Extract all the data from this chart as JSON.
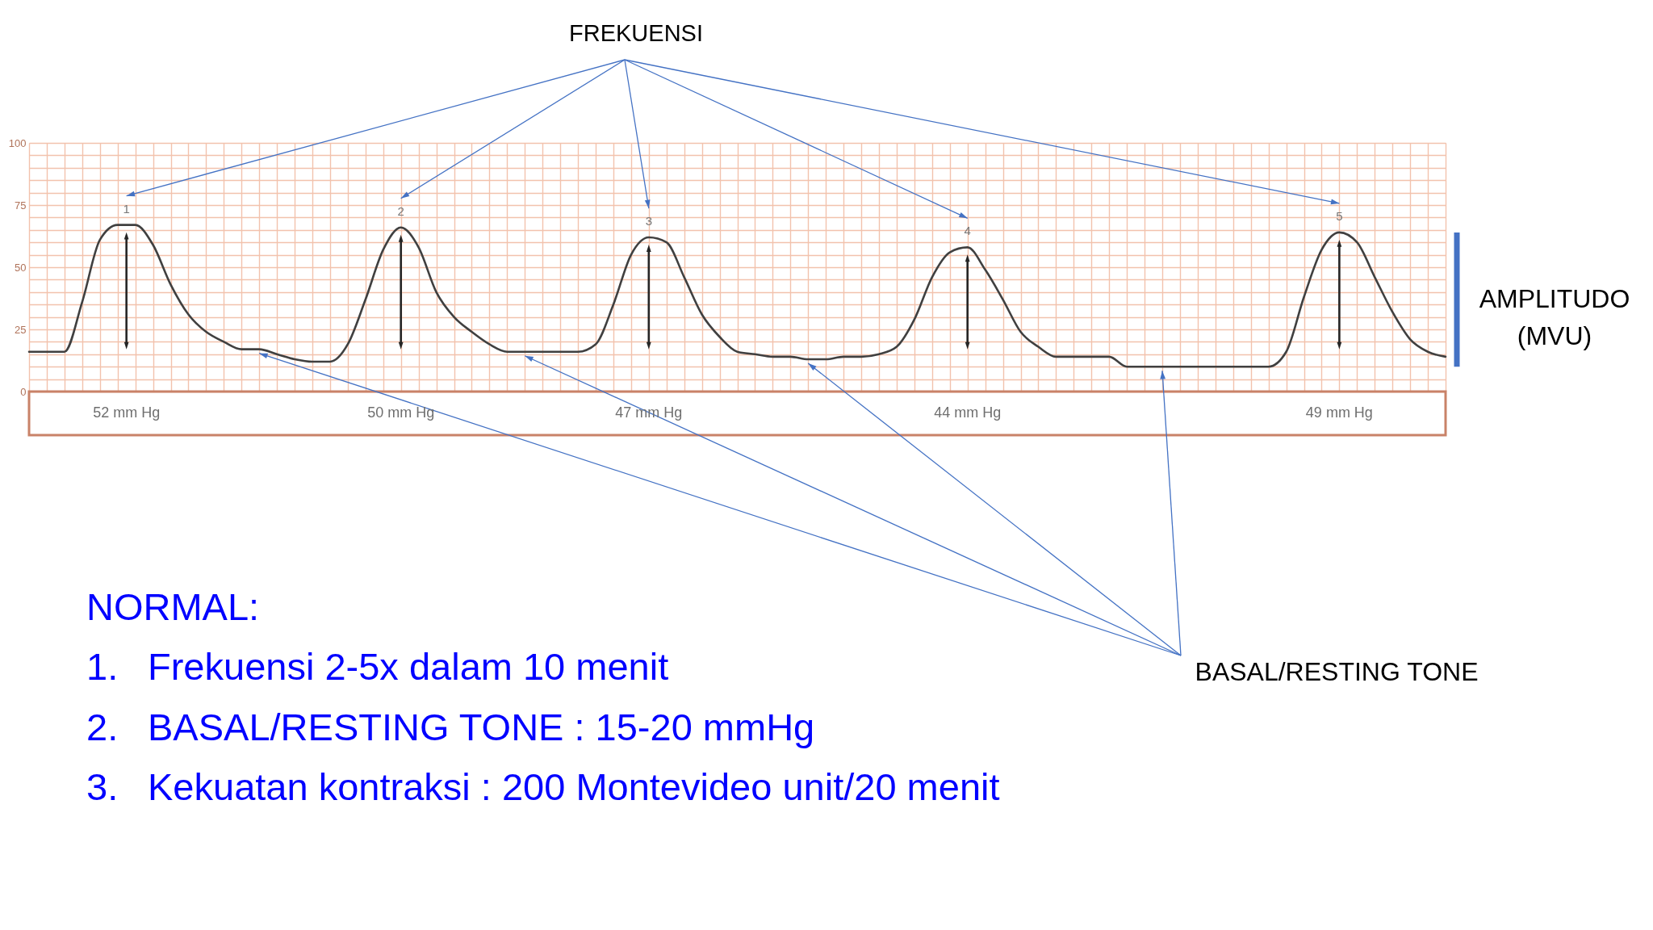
{
  "chart_data": {
    "type": "line",
    "categories": [
      null,
      null,
      null,
      null,
      null,
      null,
      null,
      null,
      null,
      null,
      null,
      null,
      null,
      null,
      null,
      null,
      null,
      null,
      null,
      null,
      null,
      null,
      null,
      null,
      null,
      null,
      null,
      null,
      null,
      null,
      null,
      null,
      null,
      null,
      null,
      null,
      null,
      null,
      null,
      null,
      null,
      null,
      null,
      null,
      null,
      null,
      null,
      null,
      null,
      null,
      null,
      null,
      null,
      null,
      null,
      null,
      null,
      null,
      null,
      null,
      null,
      null,
      null,
      null,
      null,
      null,
      null,
      null,
      null,
      null,
      null,
      null,
      null,
      null,
      null,
      null,
      null,
      null,
      null,
      null,
      null
    ],
    "series": [
      {
        "color": "#404040",
        "values": [
          16,
          16,
          16,
          36,
          61,
          67,
          67,
          59,
          43,
          31,
          24,
          20,
          17,
          17,
          15,
          13,
          12,
          12,
          19,
          37,
          57,
          66,
          58,
          40,
          30,
          24,
          19,
          16,
          16,
          16,
          16,
          16,
          19,
          35,
          55,
          62,
          60,
          46,
          31,
          22,
          16,
          15,
          14,
          14,
          13,
          13,
          14,
          14,
          15,
          18,
          29,
          46,
          56,
          58,
          49,
          37,
          24,
          18,
          14,
          14,
          14,
          14,
          10,
          10,
          10,
          10,
          10,
          10,
          10,
          10,
          10,
          16,
          38,
          57,
          64,
          60,
          46,
          32,
          21,
          16,
          14
        ]
      }
    ],
    "ylim": [
      0,
      100
    ],
    "yticks": [
      0,
      {
        "value": 5,
        "label": null
      },
      {
        "value": 10,
        "label": null
      },
      {
        "value": 15,
        "label": null
      },
      {
        "value": 20,
        "label": null
      },
      25,
      {
        "value": 30,
        "label": null
      },
      {
        "value": 35,
        "label": null
      },
      {
        "value": 40,
        "label": null
      },
      {
        "value": 45,
        "label": null
      },
      50,
      {
        "value": 55,
        "label": null
      },
      {
        "value": 60,
        "label": null
      },
      {
        "value": 65,
        "label": null
      },
      {
        "value": 70,
        "label": null
      },
      75,
      {
        "value": 80,
        "label": null
      },
      {
        "value": 85,
        "label": null
      },
      {
        "value": 90,
        "label": null
      },
      {
        "value": 95,
        "label": null
      },
      100
    ],
    "grid": true,
    "tick_labels": "y",
    "annotations": [
      "FREKUENSI",
      "AMPLITUDO (MVU)",
      "BASAL/RESTING TONE",
      "NORMAL:",
      "1. Frekuensi 2-5x dalam 10 menit",
      "2. BASAL/RESTING TONE : 15-20 mmHg",
      "3. Kekuatan kontraksi : 200 Montevideo unit/20 menit",
      "52 mm Hg",
      "50 mm Hg",
      "47 mm Hg",
      "44 mm Hg",
      "49 mm Hg",
      "1",
      "2",
      "3",
      "4",
      "5"
    ]
  }
}
